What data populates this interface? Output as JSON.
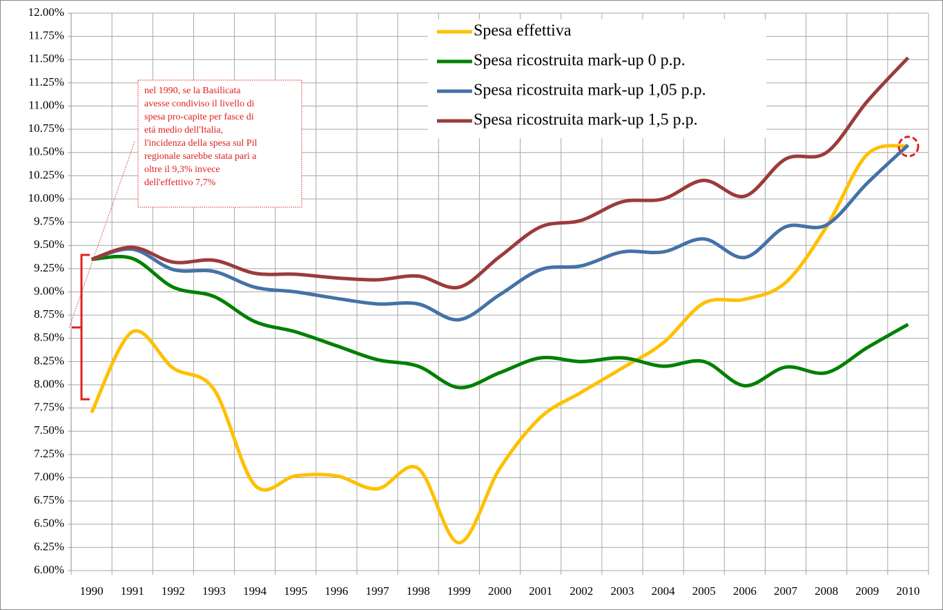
{
  "chart_data": {
    "type": "line",
    "categories": [
      "1990",
      "1991",
      "1992",
      "1993",
      "1994",
      "1995",
      "1996",
      "1997",
      "1998",
      "1999",
      "2000",
      "2001",
      "2002",
      "2003",
      "2004",
      "2005",
      "2006",
      "2007",
      "2008",
      "2009",
      "2010"
    ],
    "series": [
      {
        "name": "Spesa effettiva",
        "color": "#ffc000",
        "values": [
          7.7,
          8.57,
          8.18,
          7.95,
          6.92,
          7.02,
          7.02,
          6.88,
          7.1,
          6.3,
          7.1,
          7.65,
          7.92,
          8.18,
          8.45,
          8.88,
          8.92,
          9.1,
          9.7,
          10.48,
          10.57
        ]
      },
      {
        "name": "Spesa ricostruita mark-up 0 p.p.",
        "color": "#008000",
        "values": [
          9.35,
          9.36,
          9.05,
          8.95,
          8.68,
          8.57,
          8.42,
          8.27,
          8.2,
          7.97,
          8.13,
          8.29,
          8.25,
          8.29,
          8.2,
          8.25,
          7.99,
          8.19,
          8.13,
          8.4,
          8.65
        ]
      },
      {
        "name": "Spesa ricostruita mark-up 1,05 p.p.",
        "color": "#4472a8",
        "values": [
          9.35,
          9.46,
          9.24,
          9.22,
          9.05,
          9.0,
          8.93,
          8.87,
          8.87,
          8.7,
          8.97,
          9.24,
          9.28,
          9.43,
          9.43,
          9.57,
          9.37,
          9.7,
          9.72,
          10.17,
          10.58
        ]
      },
      {
        "name": "Spesa ricostruita mark-up 1,5 p.p.",
        "color": "#9c3b3b",
        "values": [
          9.35,
          9.48,
          9.32,
          9.34,
          9.2,
          9.19,
          9.15,
          9.13,
          9.17,
          9.05,
          9.38,
          9.7,
          9.77,
          9.97,
          10.0,
          10.2,
          10.03,
          10.43,
          10.5,
          11.05,
          11.52
        ]
      }
    ],
    "ylim": [
      6,
      12
    ],
    "yticks": [
      {
        "value": 6,
        "label": "6.00%"
      },
      {
        "value": 6.25,
        "label": "6.25%"
      },
      {
        "value": 6.5,
        "label": "6.50%"
      },
      {
        "value": 6.75,
        "label": "6.75%"
      },
      {
        "value": 7,
        "label": "7.00%"
      },
      {
        "value": 7.25,
        "label": "7.25%"
      },
      {
        "value": 7.5,
        "label": "7.50%"
      },
      {
        "value": 7.75,
        "label": "7.75%"
      },
      {
        "value": 8,
        "label": "8.00%"
      },
      {
        "value": 8.25,
        "label": "8.25%"
      },
      {
        "value": 8.5,
        "label": "8.50%"
      },
      {
        "value": 8.75,
        "label": "8.75%"
      },
      {
        "value": 9,
        "label": "9.00%"
      },
      {
        "value": 9.25,
        "label": "9.25%"
      },
      {
        "value": 9.5,
        "label": "9.50%"
      },
      {
        "value": 9.75,
        "label": "9.75%"
      },
      {
        "value": 10,
        "label": "10.00%"
      },
      {
        "value": 10.25,
        "label": "10.25%"
      },
      {
        "value": 10.5,
        "label": "10.50%"
      },
      {
        "value": 10.75,
        "label": "10.75%"
      },
      {
        "value": 11,
        "label": "11.00%"
      },
      {
        "value": 11.25,
        "label": "11.25%"
      },
      {
        "value": 11.5,
        "label": "11.50%"
      },
      {
        "value": 11.75,
        "label": "11.75%"
      },
      {
        "value": 12,
        "label": "12.00%"
      }
    ],
    "grid": true,
    "annotation": [
      "nel 1990, se la Basilicata",
      "avesse condiviso il livello di",
      "spesa pro-capite per fasce di",
      "etá  medio dell'Italia,",
      "l'incidenza della spesa sul Pil",
      "regionale sarebbe stata pari a",
      "oltre il 9,3% invece",
      "dell'effettivo  7,7%"
    ]
  }
}
